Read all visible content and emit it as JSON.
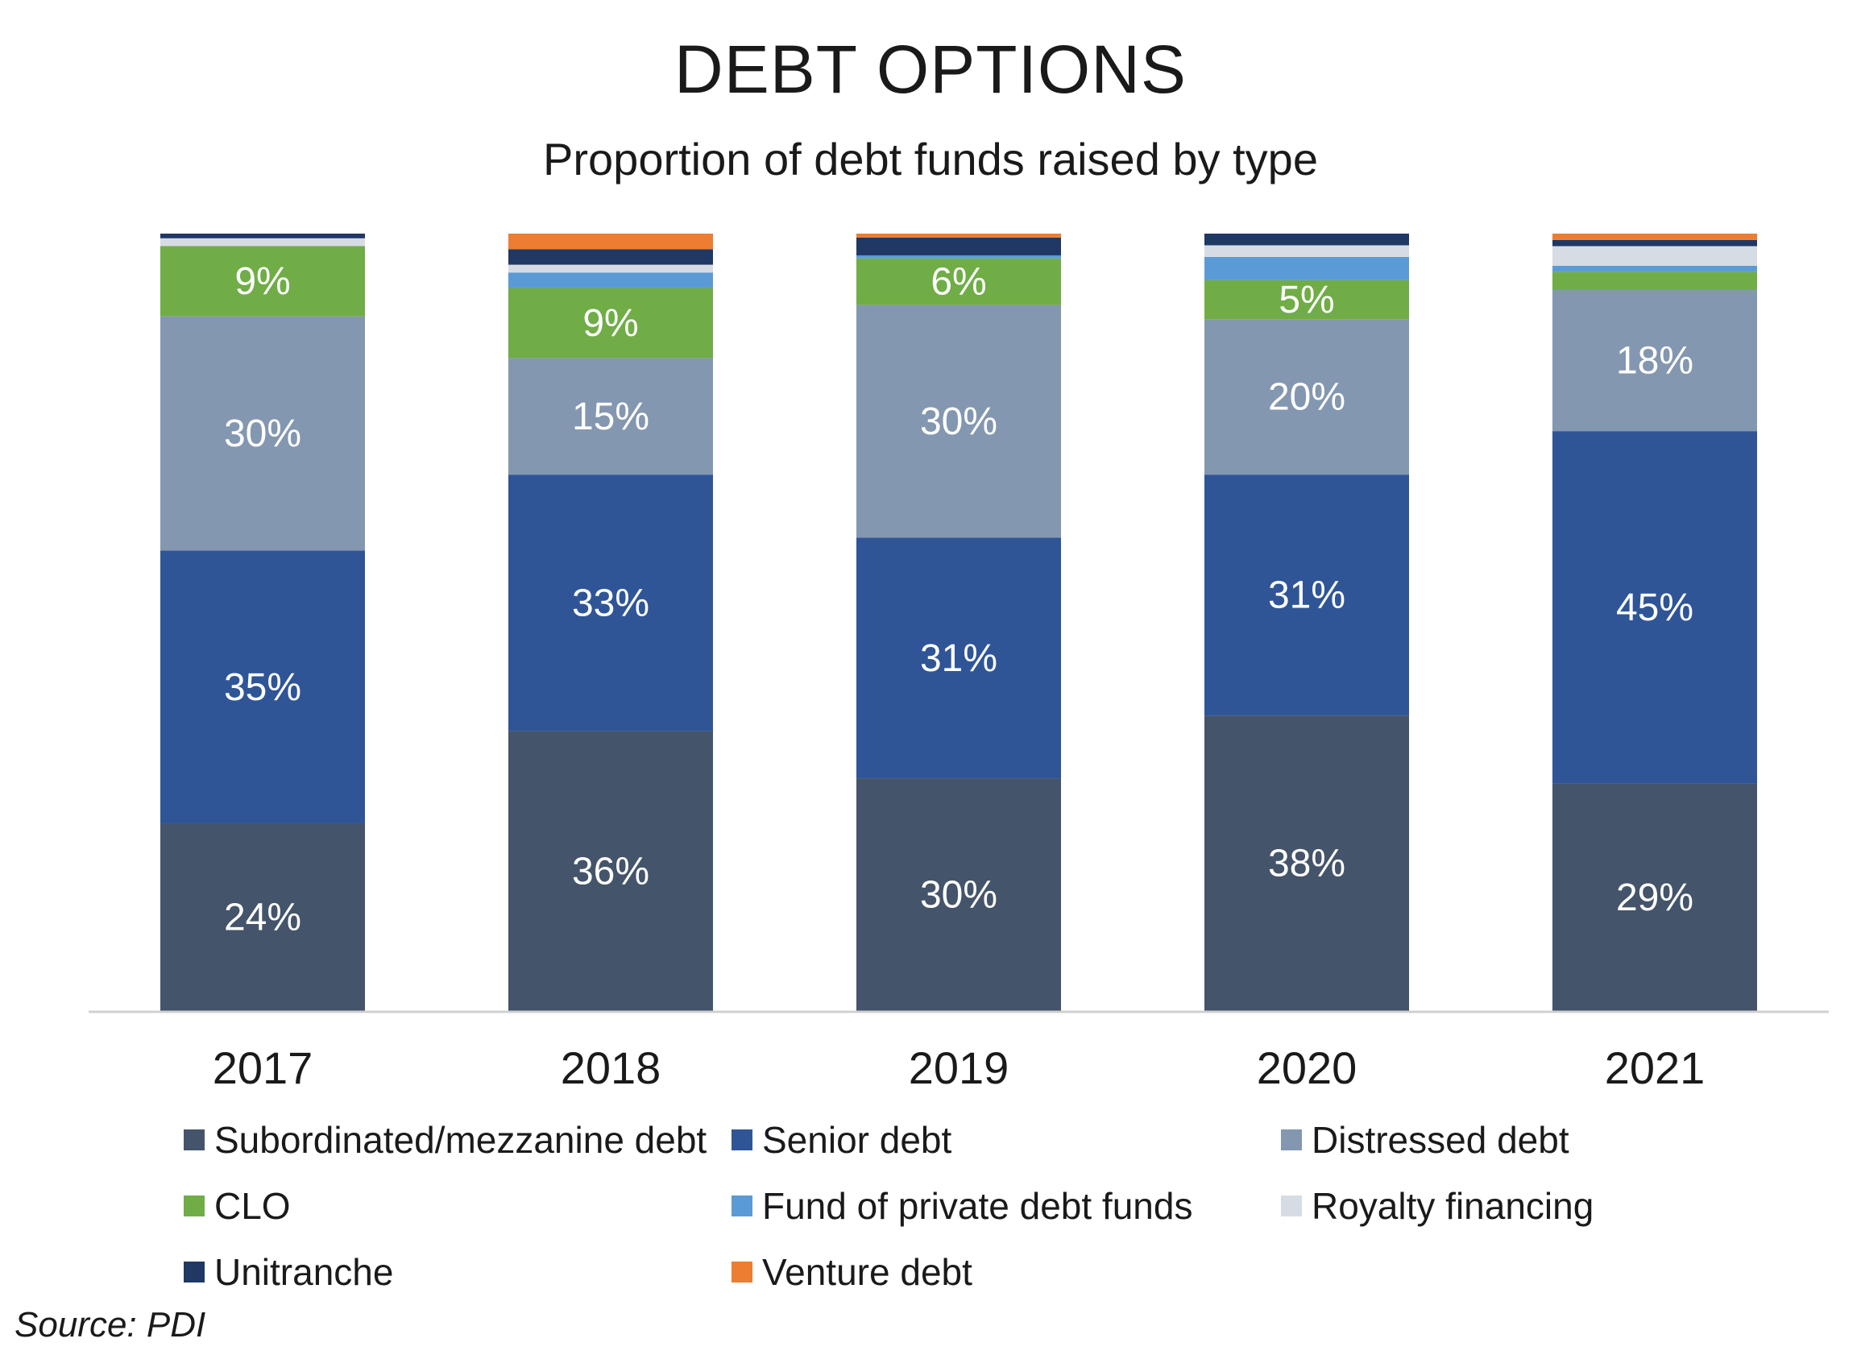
{
  "header": {
    "title": "DEBT OPTIONS",
    "subtitle": "Proportion of debt funds raised by type"
  },
  "source": "Source: PDI",
  "chart_data": {
    "type": "bar",
    "stacked": true,
    "normalized_to_100": true,
    "title": "DEBT OPTIONS",
    "subtitle": "Proportion of debt funds raised by type",
    "categories": [
      "2017",
      "2018",
      "2019",
      "2020",
      "2021"
    ],
    "ylim": [
      0,
      100
    ],
    "grid": false,
    "legend_position": "bottom",
    "series": [
      {
        "name": "Subordinated/mezzanine debt",
        "color": "#44546a",
        "values": [
          24,
          36,
          30,
          38,
          29
        ],
        "labels": [
          "24%",
          "36%",
          "30%",
          "38%",
          "29%"
        ]
      },
      {
        "name": "Senior debt",
        "color": "#2f5597",
        "values": [
          35,
          33,
          31,
          31,
          45
        ],
        "labels": [
          "35%",
          "33%",
          "31%",
          "31%",
          "45%"
        ]
      },
      {
        "name": "Distressed debt",
        "color": "#8497b0",
        "values": [
          30,
          15,
          30,
          20,
          18
        ],
        "labels": [
          "30%",
          "15%",
          "30%",
          "20%",
          "18%"
        ]
      },
      {
        "name": "CLO",
        "color": "#70ad47",
        "values": [
          9,
          9,
          6,
          5,
          2.3
        ],
        "labels": [
          "9%",
          "9%",
          "6%",
          "5%",
          ""
        ]
      },
      {
        "name": "Fund of private debt funds",
        "color": "#5b9bd5",
        "values": [
          0,
          2,
          0.4,
          3,
          0.8
        ],
        "labels": [
          "",
          "",
          "",
          "",
          ""
        ]
      },
      {
        "name": "Royalty financing",
        "color": "#d6dce4",
        "values": [
          1,
          1,
          0,
          1.5,
          2.5
        ],
        "labels": [
          "",
          "",
          "",
          "",
          ""
        ]
      },
      {
        "name": "Unitranche",
        "color": "#203864",
        "values": [
          0.6,
          2,
          2.3,
          1.5,
          0.8
        ],
        "labels": [
          "",
          "",
          "",
          "",
          ""
        ]
      },
      {
        "name": "Venture debt",
        "color": "#ed7d31",
        "values": [
          0,
          2,
          0.5,
          0,
          0.8
        ],
        "labels": [
          "",
          "",
          "",
          "",
          ""
        ]
      }
    ]
  }
}
